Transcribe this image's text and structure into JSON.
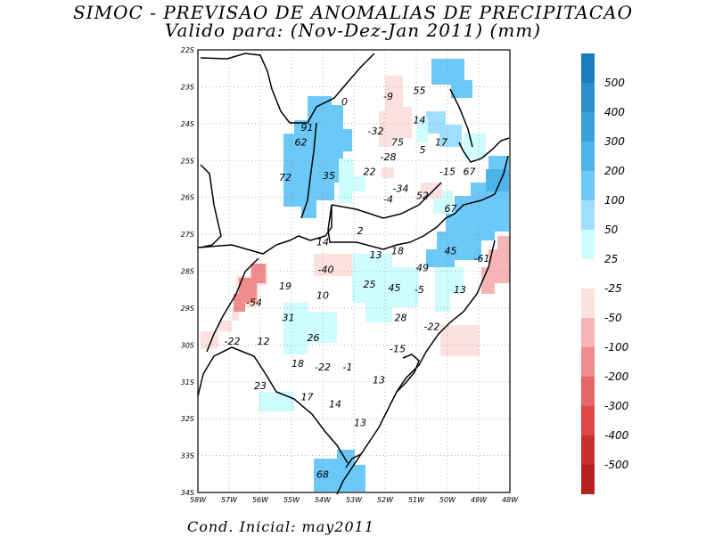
{
  "title": "SIMOC - PREVISAO DE ANOMALIAS DE PRECIPITACAO",
  "subtitle": "Valido para: (Nov-Dez-Jan 2011) (mm)",
  "footer": "Cond. Inicial: may2011",
  "map": {
    "lon_range": [
      -58,
      -48
    ],
    "lat_range": [
      -34,
      -22
    ],
    "x_ticks": [
      "58W",
      "57W",
      "56W",
      "55W",
      "54W",
      "53W",
      "52W",
      "51W",
      "50W",
      "49W",
      "48W"
    ],
    "y_ticks": [
      "22S",
      "23S",
      "24S",
      "25S",
      "26S",
      "27S",
      "28S",
      "29S",
      "30S",
      "31S",
      "32S",
      "33S",
      "34S"
    ],
    "grid": true,
    "values": [
      {
        "text": "0",
        "lon": -53.3,
        "lat": -23.4
      },
      {
        "text": "-9",
        "lon": -51.9,
        "lat": -23.25
      },
      {
        "text": "55",
        "lon": -50.9,
        "lat": -23.1
      },
      {
        "text": "14",
        "lon": -50.9,
        "lat": -23.9
      },
      {
        "text": "91",
        "lon": -54.5,
        "lat": -24.1
      },
      {
        "text": "-32",
        "lon": -52.3,
        "lat": -24.2
      },
      {
        "text": "75",
        "lon": -51.6,
        "lat": -24.5
      },
      {
        "text": "5",
        "lon": -50.8,
        "lat": -24.7
      },
      {
        "text": "17",
        "lon": -50.2,
        "lat": -24.5
      },
      {
        "text": "62",
        "lon": -54.7,
        "lat": -24.5
      },
      {
        "text": "-28",
        "lon": -51.9,
        "lat": -24.9
      },
      {
        "text": "22",
        "lon": -52.5,
        "lat": -25.3
      },
      {
        "text": "-15",
        "lon": -50.0,
        "lat": -25.3
      },
      {
        "text": "67",
        "lon": -49.3,
        "lat": -25.3
      },
      {
        "text": "72",
        "lon": -55.2,
        "lat": -25.45
      },
      {
        "text": "35",
        "lon": -53.8,
        "lat": -25.4
      },
      {
        "text": "-34",
        "lon": -51.5,
        "lat": -25.75
      },
      {
        "text": "52",
        "lon": -50.8,
        "lat": -25.95
      },
      {
        "text": "-4",
        "lon": -51.9,
        "lat": -26.05
      },
      {
        "text": "67",
        "lon": -49.9,
        "lat": -26.3
      },
      {
        "text": "2",
        "lon": -52.8,
        "lat": -26.9
      },
      {
        "text": "14",
        "lon": -54.0,
        "lat": -27.2
      },
      {
        "text": "13",
        "lon": -52.3,
        "lat": -27.55
      },
      {
        "text": "18",
        "lon": -51.6,
        "lat": -27.45
      },
      {
        "text": "45",
        "lon": -49.9,
        "lat": -27.45
      },
      {
        "text": "-61",
        "lon": -48.9,
        "lat": -27.65
      },
      {
        "text": "49",
        "lon": -50.8,
        "lat": -27.9
      },
      {
        "text": "-40",
        "lon": -53.9,
        "lat": -27.95
      },
      {
        "text": "25",
        "lon": -52.5,
        "lat": -28.35
      },
      {
        "text": "45",
        "lon": -51.7,
        "lat": -28.45
      },
      {
        "text": "-5",
        "lon": -50.9,
        "lat": -28.5
      },
      {
        "text": "13",
        "lon": -49.6,
        "lat": -28.5
      },
      {
        "text": "19",
        "lon": -55.2,
        "lat": -28.4
      },
      {
        "text": "10",
        "lon": -54.0,
        "lat": -28.65
      },
      {
        "text": "-54",
        "lon": -56.2,
        "lat": -28.85
      },
      {
        "text": "31",
        "lon": -55.1,
        "lat": -29.25
      },
      {
        "text": "28",
        "lon": -51.5,
        "lat": -29.25
      },
      {
        "text": "-22",
        "lon": -50.5,
        "lat": -29.5
      },
      {
        "text": "26",
        "lon": -54.3,
        "lat": -29.8
      },
      {
        "text": "12",
        "lon": -55.9,
        "lat": -29.9
      },
      {
        "text": "-22",
        "lon": -56.9,
        "lat": -29.9
      },
      {
        "text": "-15",
        "lon": -51.6,
        "lat": -30.1
      },
      {
        "text": "18",
        "lon": -54.8,
        "lat": -30.5
      },
      {
        "text": "-22",
        "lon": -54.0,
        "lat": -30.6
      },
      {
        "text": "-1",
        "lon": -53.2,
        "lat": -30.6
      },
      {
        "text": "13",
        "lon": -52.2,
        "lat": -30.95
      },
      {
        "text": "23",
        "lon": -56.0,
        "lat": -31.1
      },
      {
        "text": "17",
        "lon": -54.5,
        "lat": -31.4
      },
      {
        "text": "14",
        "lon": -53.6,
        "lat": -31.6
      },
      {
        "text": "13",
        "lon": -52.8,
        "lat": -32.1
      },
      {
        "text": "68",
        "lon": -54.0,
        "lat": -33.5
      }
    ]
  },
  "legend": {
    "positive": [
      {
        "label": "500",
        "color": "#1b7dbd"
      },
      {
        "label": "400",
        "color": "#2b8fcd"
      },
      {
        "label": "300",
        "color": "#3aa0dc"
      },
      {
        "label": "200",
        "color": "#4cb4ea"
      },
      {
        "label": "100",
        "color": "#6cc8f6"
      },
      {
        "label": "50",
        "color": "#9fdffd"
      },
      {
        "label": "25",
        "color": "#cffcff"
      }
    ],
    "negative": [
      {
        "label": "-25",
        "color": "#fde0e0"
      },
      {
        "label": "-50",
        "color": "#f7b4b4"
      },
      {
        "label": "-100",
        "color": "#ef8c8c"
      },
      {
        "label": "-200",
        "color": "#e66767"
      },
      {
        "label": "-300",
        "color": "#dd4747"
      },
      {
        "label": "-400",
        "color": "#ca2f2f"
      },
      {
        "label": "-500",
        "color": "#b82020"
      }
    ]
  }
}
